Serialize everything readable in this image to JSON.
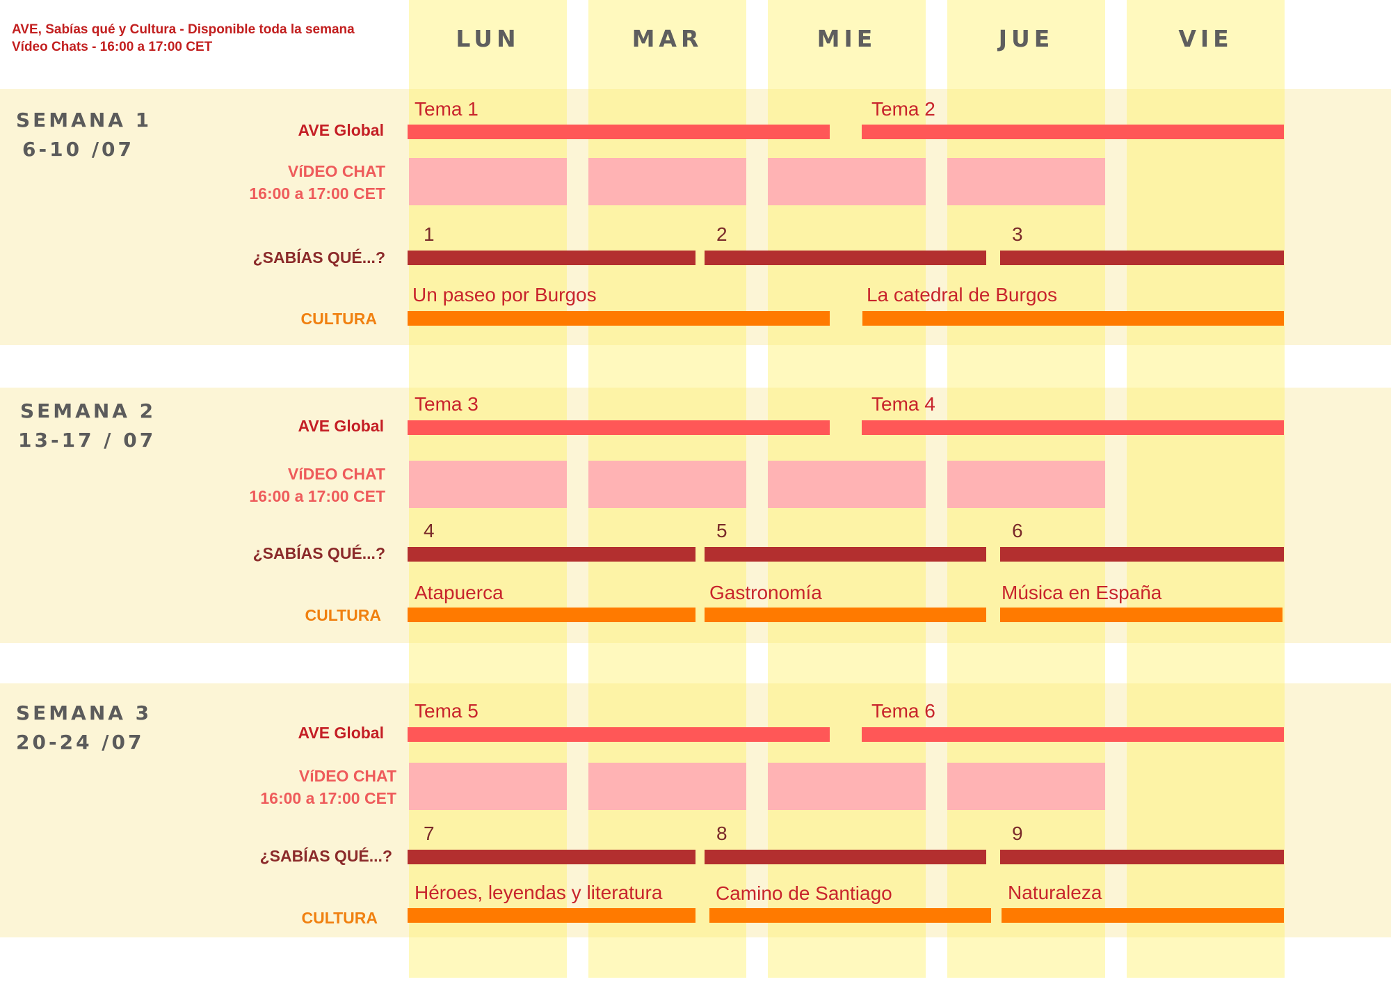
{
  "header": {
    "note_line1": "AVE, Sabías qué y Cultura - Disponible toda la semana",
    "note_line2": "Vídeo Chats - 16:00 a 17:00 CET"
  },
  "days": [
    "LUN",
    "MAR",
    "MIE",
    "JUE",
    "VIE"
  ],
  "colors": {
    "ave": "#ff5757",
    "video_chat": "#ffb3b4",
    "sabias": "#b32f2f",
    "cultura": "#ff7a00",
    "day_column": "#fbf2a0",
    "week_band": "#fcf5d6"
  },
  "labels": {
    "ave": "AVE Global",
    "chat_line1": "VíDEO CHAT",
    "chat_line2": "16:00 a 17:00 CET",
    "sabias": "¿SABÍAS QUÉ...?",
    "cultura": "CULTURA"
  },
  "weeks": [
    {
      "title": "SEMANA 1",
      "dates": "6-10 /07",
      "ave": [
        "Tema 1",
        "Tema 2"
      ],
      "video_chat_days": [
        "LUN",
        "MAR",
        "MIE",
        "JUE"
      ],
      "sabias": [
        "1",
        "2",
        "3"
      ],
      "cultura": [
        "Un paseo por Burgos",
        "La catedral de Burgos"
      ]
    },
    {
      "title": "SEMANA 2",
      "dates": "13-17 / 07",
      "ave": [
        "Tema 3",
        "Tema 4"
      ],
      "video_chat_days": [
        "LUN",
        "MAR",
        "MIE",
        "JUE"
      ],
      "sabias": [
        "4",
        "5",
        "6"
      ],
      "cultura": [
        "Atapuerca",
        "Gastronomía",
        "Música en España"
      ]
    },
    {
      "title": "SEMANA 3",
      "dates": "20-24 /07",
      "ave": [
        "Tema 5",
        "Tema 6"
      ],
      "video_chat_days": [
        "LUN",
        "MAR",
        "MIE",
        "JUE"
      ],
      "sabias": [
        "7",
        "8",
        "9"
      ],
      "cultura": [
        "Héroes, leyendas y literatura",
        "Camino de Santiago",
        "Naturaleza"
      ]
    }
  ]
}
